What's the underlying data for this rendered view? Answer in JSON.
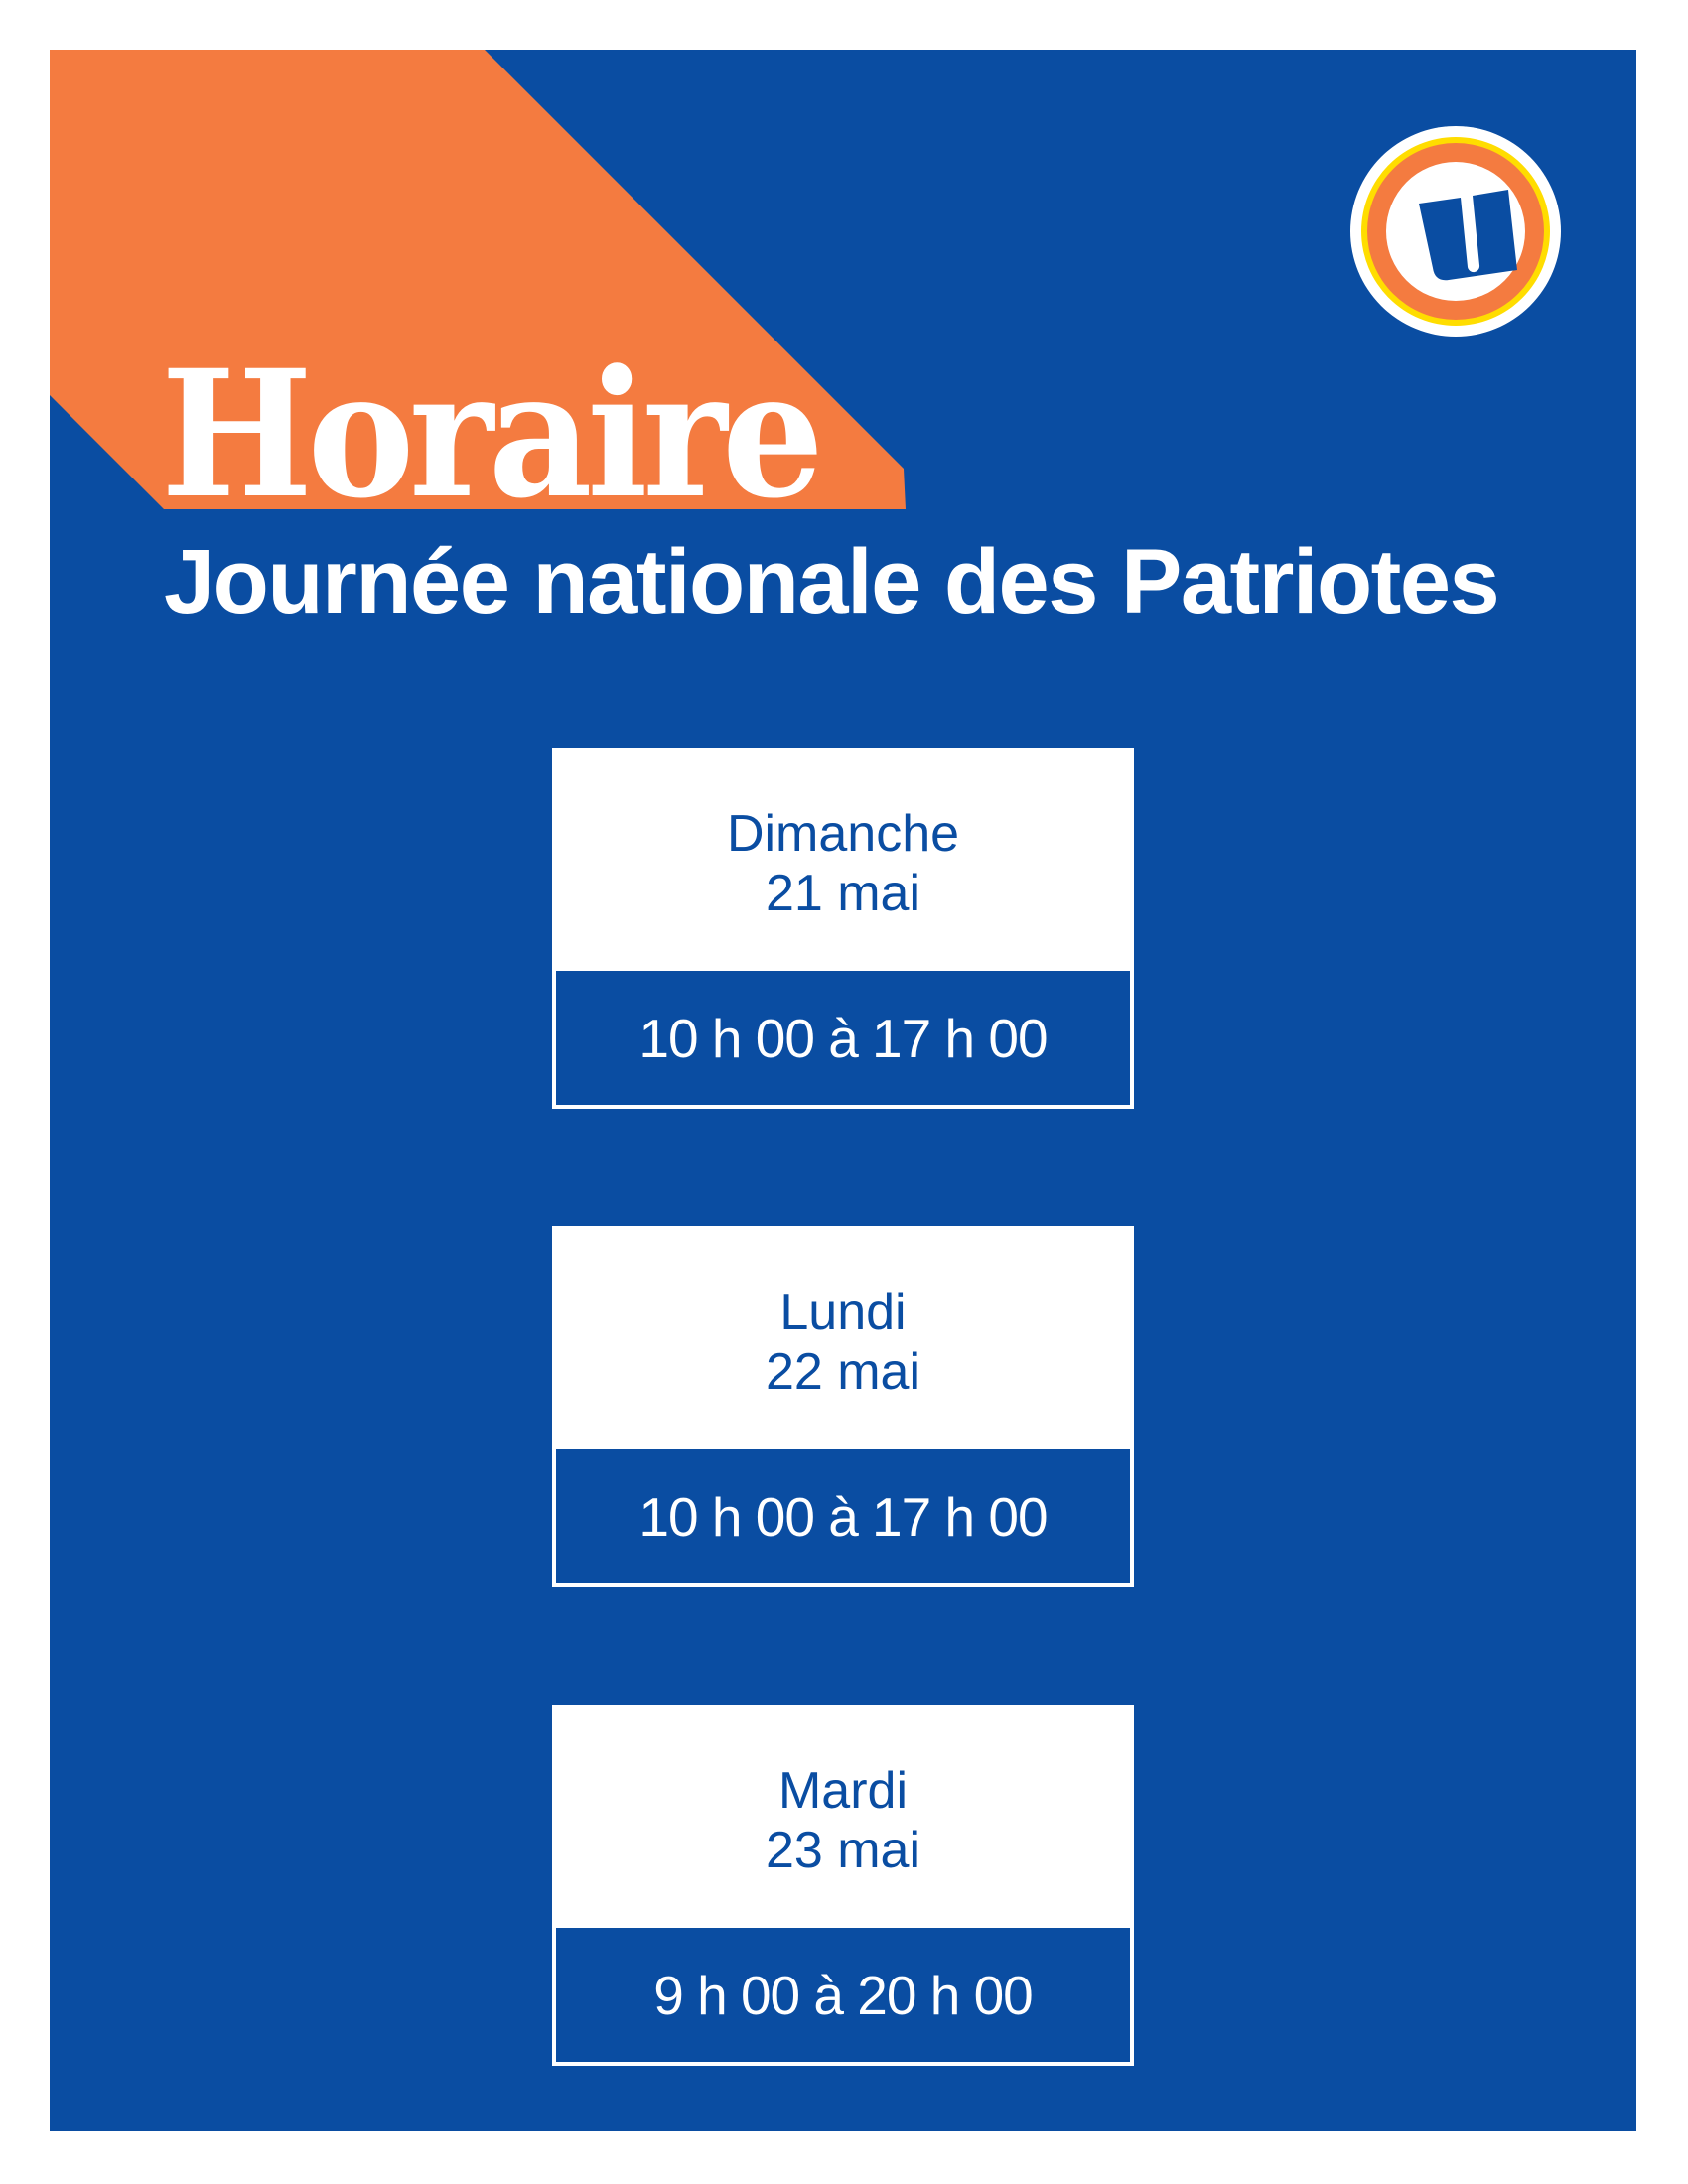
{
  "colors": {
    "background": "#0a4da2",
    "accent": "#f47b40",
    "logo_yellow": "#ffdd00",
    "text": "#ffffff"
  },
  "header": {
    "title": "Horaire",
    "subtitle": "Journée nationale des Patriotes",
    "logo": {
      "icon": "u-logo-icon",
      "letter": "U"
    }
  },
  "schedule": [
    {
      "day": "Dimanche",
      "date": "21 mai",
      "hours": "10 h 00 à 17 h 00"
    },
    {
      "day": "Lundi",
      "date": "22 mai",
      "hours": "10 h 00 à 17 h 00"
    },
    {
      "day": "Mardi",
      "date": "23 mai",
      "hours": "9 h 00 à 20 h 00"
    }
  ]
}
